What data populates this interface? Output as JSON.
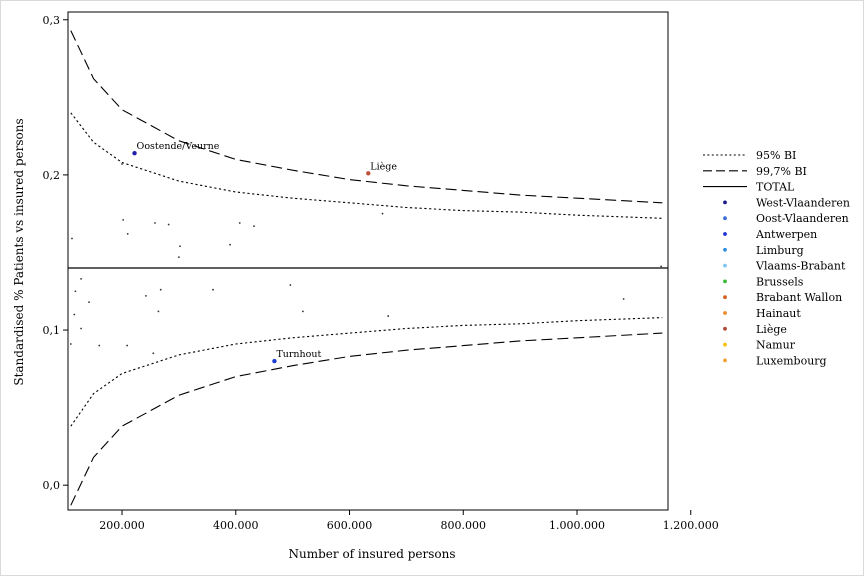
{
  "chart_data": {
    "type": "scatter",
    "xlabel": "Number of insured persons",
    "ylabel": "Standardised % Patients vs insured persons",
    "xlim": [
      105000,
      1160000
    ],
    "ylim": [
      -0.016,
      0.305
    ],
    "x_ticks": [
      200000,
      400000,
      600000,
      800000,
      1000000,
      1200000
    ],
    "x_tick_labels": [
      "200.000",
      "400.000",
      "600.000",
      "800.000",
      "1.000.000",
      "1.200.000"
    ],
    "y_ticks": [
      0.0,
      0.1,
      0.2,
      0.3
    ],
    "y_tick_labels": [
      "0,0",
      "0,1",
      "0,2",
      "0,3"
    ],
    "total": 0.14,
    "ci": {
      "x": [
        110000,
        150000,
        200000,
        300000,
        400000,
        500000,
        600000,
        700000,
        800000,
        900000,
        1000000,
        1150000
      ],
      "upper95": [
        0.24,
        0.221,
        0.208,
        0.196,
        0.189,
        0.185,
        0.182,
        0.179,
        0.177,
        0.176,
        0.174,
        0.172
      ],
      "lower95": [
        0.038,
        0.059,
        0.072,
        0.084,
        0.091,
        0.095,
        0.098,
        0.101,
        0.103,
        0.104,
        0.106,
        0.108
      ],
      "upper997": [
        0.293,
        0.262,
        0.242,
        0.222,
        0.21,
        0.203,
        0.197,
        0.193,
        0.19,
        0.187,
        0.185,
        0.182
      ],
      "lower997": [
        -0.013,
        0.018,
        0.038,
        0.058,
        0.07,
        0.077,
        0.083,
        0.087,
        0.09,
        0.093,
        0.095,
        0.098
      ]
    },
    "points": [
      {
        "x": 222000,
        "y": 0.214,
        "color": "#1f1fa8",
        "label": "Oostende/Veurne",
        "highlight": true
      },
      {
        "x": 633000,
        "y": 0.201,
        "color": "#c0503a",
        "label": "Liège",
        "highlight": true
      },
      {
        "x": 468000,
        "y": 0.08,
        "color": "#1f3fd0",
        "label": "Turnhout",
        "highlight": true
      },
      {
        "x": 112000,
        "y": 0.159,
        "color": "#333333"
      },
      {
        "x": 200000,
        "y": 0.207,
        "color": "#333333"
      },
      {
        "x": 202000,
        "y": 0.171,
        "color": "#333333"
      },
      {
        "x": 210000,
        "y": 0.162,
        "color": "#333333"
      },
      {
        "x": 258000,
        "y": 0.169,
        "color": "#333333"
      },
      {
        "x": 282000,
        "y": 0.168,
        "color": "#333333"
      },
      {
        "x": 302000,
        "y": 0.154,
        "color": "#333333"
      },
      {
        "x": 300000,
        "y": 0.147,
        "color": "#333333"
      },
      {
        "x": 390000,
        "y": 0.155,
        "color": "#333333"
      },
      {
        "x": 407000,
        "y": 0.169,
        "color": "#333333"
      },
      {
        "x": 432000,
        "y": 0.167,
        "color": "#333333"
      },
      {
        "x": 658000,
        "y": 0.175,
        "color": "#333333"
      },
      {
        "x": 1148000,
        "y": 0.141,
        "color": "#333333"
      },
      {
        "x": 128000,
        "y": 0.133,
        "color": "#333333"
      },
      {
        "x": 118000,
        "y": 0.125,
        "color": "#333333"
      },
      {
        "x": 142000,
        "y": 0.118,
        "color": "#333333"
      },
      {
        "x": 116000,
        "y": 0.11,
        "color": "#333333"
      },
      {
        "x": 128000,
        "y": 0.101,
        "color": "#333333"
      },
      {
        "x": 110000,
        "y": 0.091,
        "color": "#333333"
      },
      {
        "x": 160000,
        "y": 0.09,
        "color": "#333333"
      },
      {
        "x": 209000,
        "y": 0.09,
        "color": "#333333"
      },
      {
        "x": 242000,
        "y": 0.122,
        "color": "#333333"
      },
      {
        "x": 268000,
        "y": 0.126,
        "color": "#333333"
      },
      {
        "x": 264000,
        "y": 0.112,
        "color": "#333333"
      },
      {
        "x": 255000,
        "y": 0.085,
        "color": "#333333"
      },
      {
        "x": 360000,
        "y": 0.126,
        "color": "#333333"
      },
      {
        "x": 496000,
        "y": 0.129,
        "color": "#333333"
      },
      {
        "x": 518000,
        "y": 0.112,
        "color": "#333333"
      },
      {
        "x": 668000,
        "y": 0.109,
        "color": "#333333"
      },
      {
        "x": 1082000,
        "y": 0.12,
        "color": "#333333"
      }
    ],
    "legend": {
      "position": "right",
      "lines": [
        {
          "label": "95% BI",
          "style": "dotted"
        },
        {
          "label": "99,7% BI",
          "style": "dashed"
        },
        {
          "label": "TOTAL",
          "style": "solid"
        }
      ],
      "regions": [
        {
          "label": "West-Vlaanderen",
          "color": "#1a1a8c"
        },
        {
          "label": "Oost-Vlaanderen",
          "color": "#3b6fd8"
        },
        {
          "label": "Antwerpen",
          "color": "#1f2fd6"
        },
        {
          "label": "Limburg",
          "color": "#2f8fe0"
        },
        {
          "label": "Vlaams-Brabant",
          "color": "#7fc6f0"
        },
        {
          "label": "Brussels",
          "color": "#37b837"
        },
        {
          "label": "Brabant Wallon",
          "color": "#d4601e"
        },
        {
          "label": "Hainaut",
          "color": "#f08a2a"
        },
        {
          "label": "Liège",
          "color": "#b0463a"
        },
        {
          "label": "Namur",
          "color": "#f5c000"
        },
        {
          "label": "Luxembourg",
          "color": "#f0a030"
        }
      ]
    }
  }
}
